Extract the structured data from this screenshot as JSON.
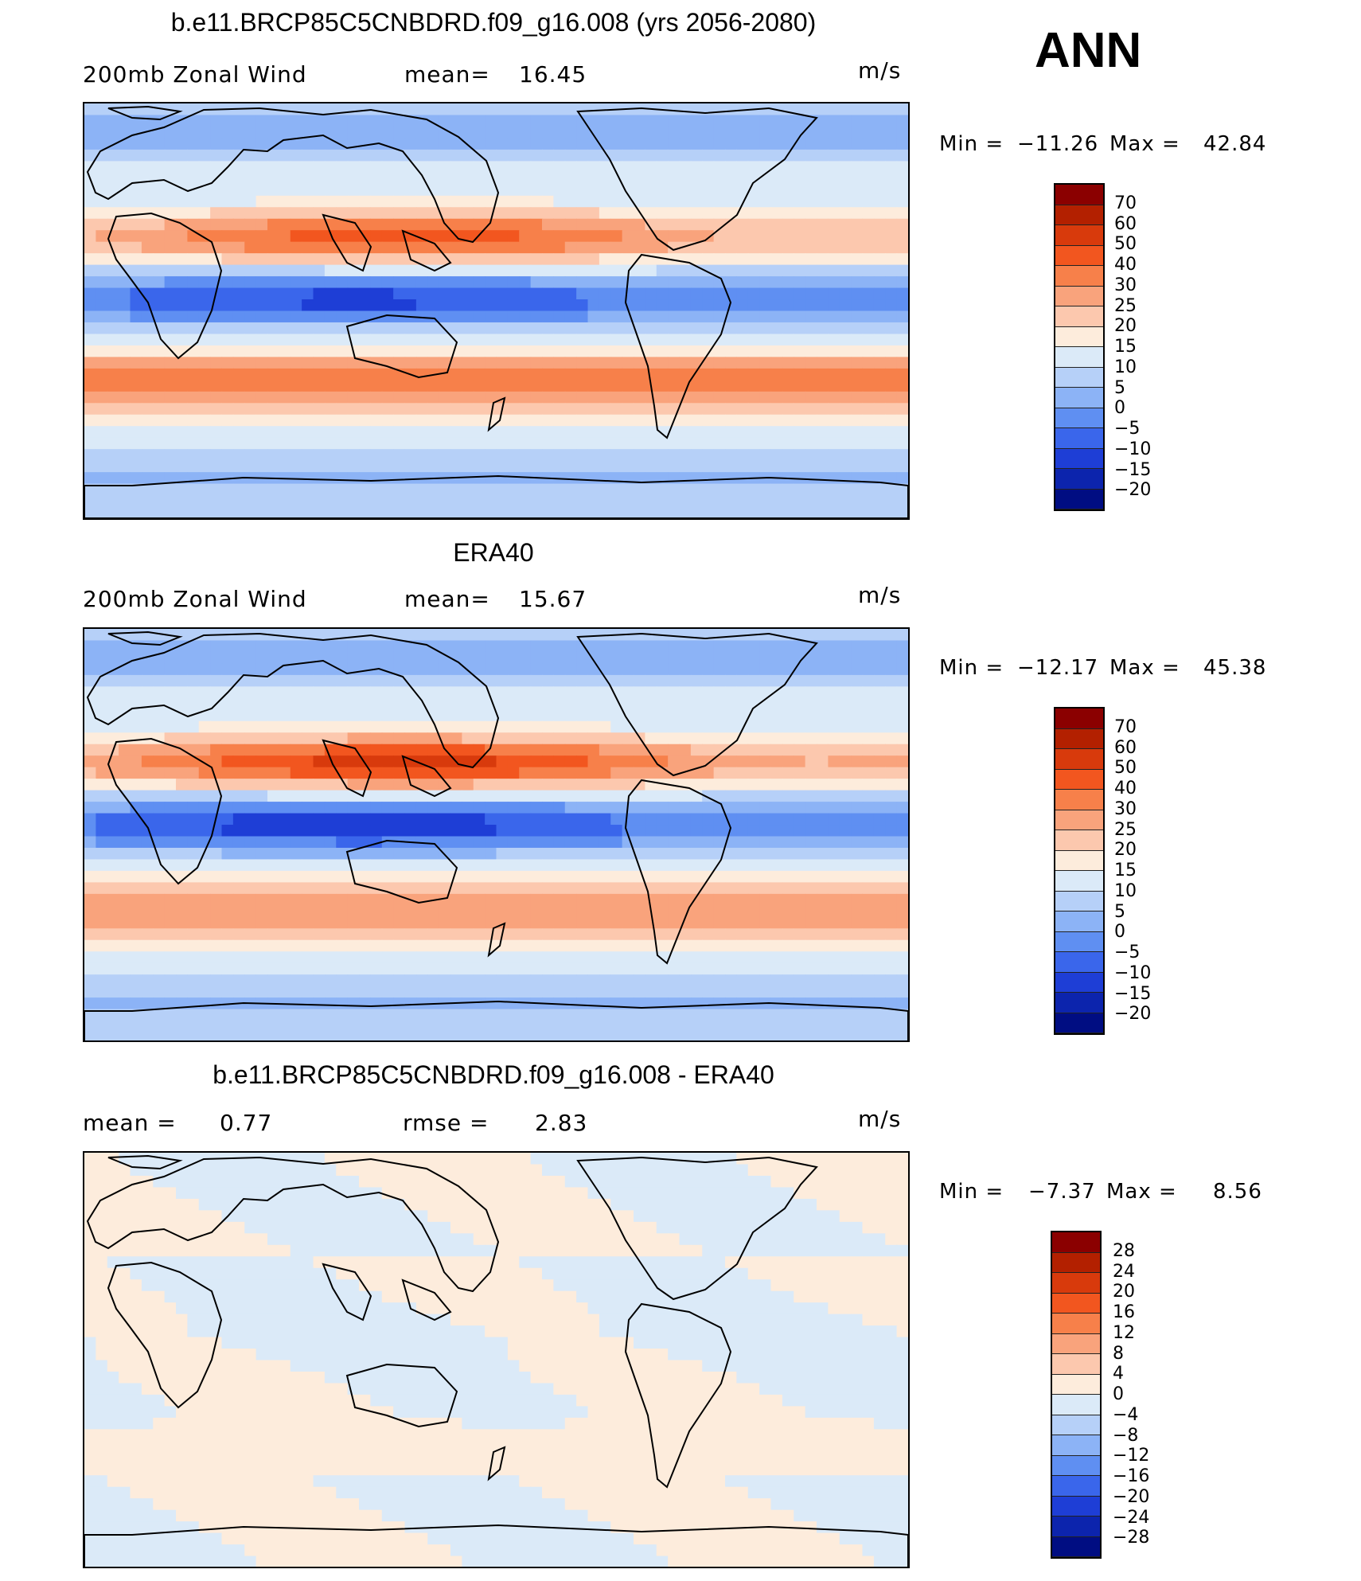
{
  "header": {
    "season": "ANN"
  },
  "panels": [
    {
      "title": "b.e11.BRCP85C5CNBDRD.f09_g16.008 (yrs 2056-2080)",
      "left_label": "200mb Zonal Wind",
      "stat_label": "mean=",
      "stat_value": "16.45",
      "units": "m/s",
      "min_label": "Min =",
      "min_value": "−11.26",
      "max_label": "Max =",
      "max_value": "42.84",
      "scale": "abs",
      "jet_nh": 38,
      "jet_sh": 32,
      "trop": -12
    },
    {
      "title": "ERA40",
      "left_label": "200mb Zonal Wind",
      "stat_label": "mean=",
      "stat_value": "15.67",
      "units": "m/s",
      "min_label": "Min =",
      "min_value": "−12.17",
      "max_label": "Max =",
      "max_value": "45.38",
      "scale": "abs",
      "jet_nh": 42,
      "jet_sh": 30,
      "trop": -14
    },
    {
      "title": "b.e11.BRCP85C5CNBDRD.f09_g16.008 - ERA40",
      "left_label": "mean =",
      "left_value": "0.77",
      "stat_label": "rmse =",
      "stat_value": "2.83",
      "units": "m/s",
      "min_label": "Min =",
      "min_value": "−7.37",
      "max_label": "Max =",
      "max_value": "8.56",
      "scale": "diff"
    }
  ],
  "colorbars": {
    "abs": {
      "levels": [
        "70",
        "60",
        "50",
        "40",
        "30",
        "25",
        "20",
        "15",
        "10",
        "5",
        "0",
        "−5",
        "−10",
        "−15",
        "−20"
      ],
      "colors": [
        "#8b0000",
        "#b32000",
        "#d83a0c",
        "#f2561f",
        "#f7804a",
        "#f9a37c",
        "#fcc8ae",
        "#fdecdc",
        "#dbeaf8",
        "#b6d0f8",
        "#8cb3f6",
        "#5f8ff2",
        "#3a66eb",
        "#1e3ed6",
        "#0c24ad",
        "#000d82"
      ]
    },
    "diff": {
      "levels": [
        "28",
        "24",
        "20",
        "16",
        "12",
        "8",
        "4",
        "0",
        "−4",
        "−8",
        "−12",
        "−16",
        "−20",
        "−24",
        "−28"
      ],
      "colors": [
        "#8b0000",
        "#b32000",
        "#d83a0c",
        "#f2561f",
        "#f7804a",
        "#f9a37c",
        "#fcc8ae",
        "#fdecdc",
        "#dbeaf8",
        "#b6d0f8",
        "#8cb3f6",
        "#5f8ff2",
        "#3a66eb",
        "#1e3ed6",
        "#0c24ad",
        "#000d82"
      ]
    }
  },
  "map": {
    "projection": "cylindrical equidistant",
    "central_longitude": "180"
  }
}
